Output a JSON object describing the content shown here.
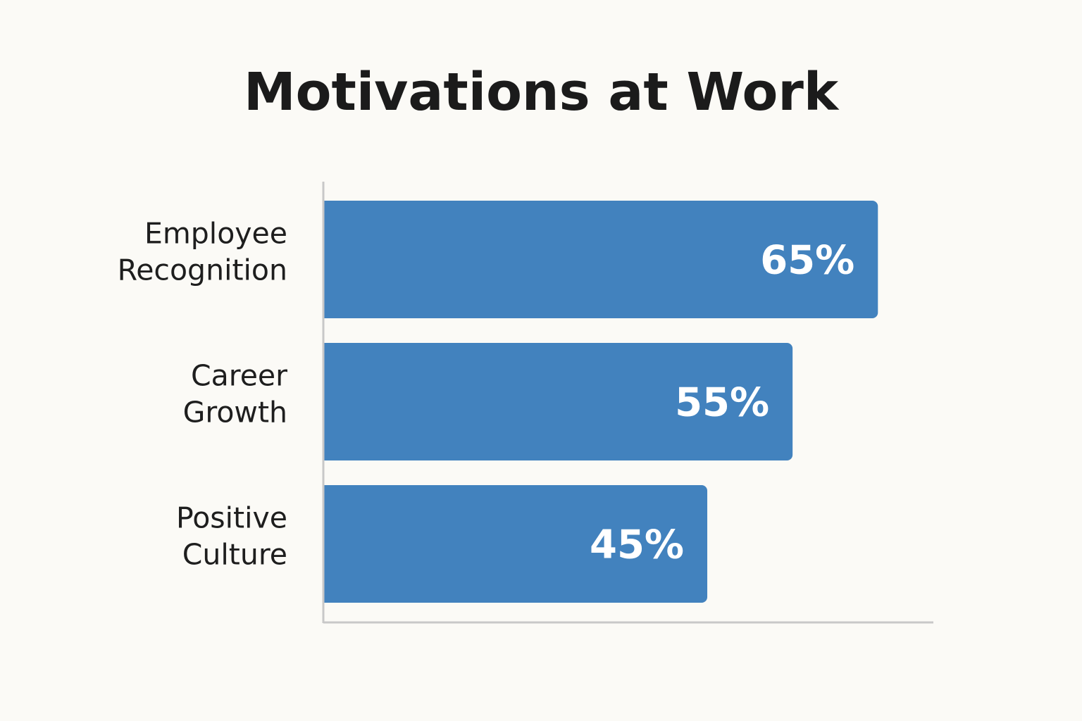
{
  "chart_data": {
    "type": "bar",
    "orientation": "horizontal",
    "title": "Motivations at Work",
    "categories": [
      [
        "Employee",
        "Recognition"
      ],
      [
        "Career",
        "Growth"
      ],
      [
        "Positive",
        "Culture"
      ]
    ],
    "values": [
      65,
      55,
      45
    ],
    "value_labels": [
      "65%",
      "55%",
      "45%"
    ],
    "unit": "%",
    "xlim": [
      0,
      71.5
    ],
    "xlabel": "",
    "ylabel": "",
    "grid": false,
    "legend": "none",
    "colors": {
      "bar": "#4282be",
      "axis": "#c8c8c8",
      "value_text": "#ffffff",
      "label_text": "#1e1e1e",
      "title_text": "#1b1b1b",
      "background": "#fbfaf6"
    }
  }
}
